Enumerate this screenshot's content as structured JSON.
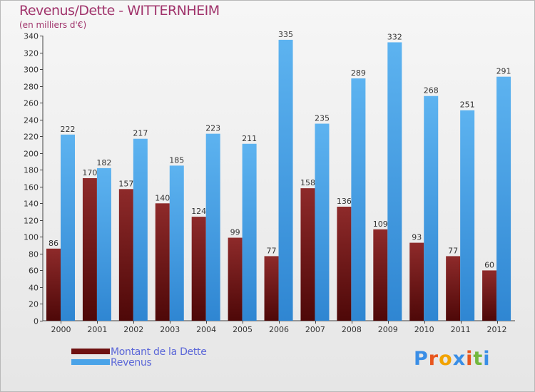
{
  "header": {
    "title": "Revenus/Dette - WITTERNHEIM",
    "subtitle": "(en milliers d'€)"
  },
  "legend": {
    "items": [
      {
        "label": "Montant de la Dette",
        "color": "#7a1a1a"
      },
      {
        "label": "Revenus",
        "color": "#4aa3e8"
      }
    ]
  },
  "logo": {
    "letters": [
      "P",
      "r",
      "o",
      "x",
      "i",
      "t",
      "i"
    ],
    "colors": [
      "#3a8ee6",
      "#e8561e",
      "#f2a300",
      "#3a8ee6",
      "#e8561e",
      "#74b83e",
      "#3a8ee6"
    ]
  },
  "chart_data": {
    "type": "bar",
    "categories": [
      "2000",
      "2001",
      "2002",
      "2003",
      "2004",
      "2005",
      "2006",
      "2007",
      "2008",
      "2009",
      "2010",
      "2011",
      "2012"
    ],
    "series": [
      {
        "name": "Montant de la Dette",
        "values": [
          86,
          170,
          157,
          140,
          124,
          99,
          77,
          158,
          136,
          109,
          93,
          77,
          60
        ],
        "color": "#7a1a1a"
      },
      {
        "name": "Revenus",
        "values": [
          222,
          182,
          217,
          185,
          223,
          211,
          335,
          235,
          289,
          332,
          268,
          251,
          291
        ],
        "color": "#4aa3e8"
      }
    ],
    "title": "Revenus/Dette - WITTERNHEIM",
    "ylabel": "(en milliers d'€)",
    "ylim": [
      0,
      340
    ],
    "ytick_step": 20,
    "grid": false,
    "legend_position": "bottom-left"
  }
}
